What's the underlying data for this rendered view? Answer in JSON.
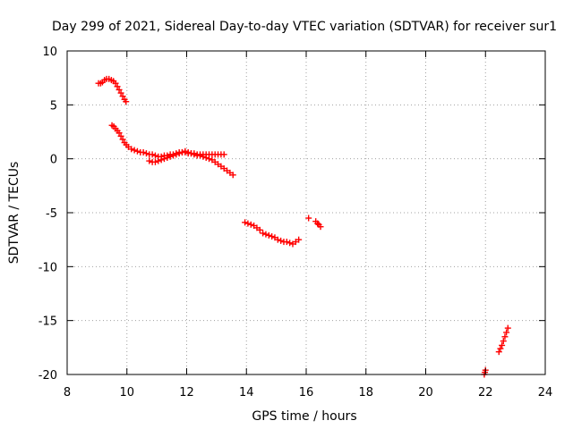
{
  "chart_data": {
    "type": "scatter",
    "title": "Day 299 of 2021, Sidereal Day-to-day VTEC variation (SDTVAR) for receiver sur1",
    "xlabel": "GPS time / hours",
    "ylabel": "SDTVAR / TECUs",
    "xlim": [
      8,
      24
    ],
    "ylim": [
      -20,
      10
    ],
    "xticks": [
      8,
      10,
      12,
      14,
      16,
      18,
      20,
      22,
      24
    ],
    "yticks": [
      -20,
      -15,
      -10,
      -5,
      0,
      5,
      10
    ],
    "grid": true,
    "marker": "+",
    "series": [
      {
        "name": "sur1",
        "color": "#ff0000",
        "points": [
          [
            9.05,
            7.0
          ],
          [
            9.12,
            7.0
          ],
          [
            9.18,
            7.1
          ],
          [
            9.25,
            7.3
          ],
          [
            9.32,
            7.4
          ],
          [
            9.4,
            7.4
          ],
          [
            9.48,
            7.3
          ],
          [
            9.55,
            7.2
          ],
          [
            9.62,
            7.0
          ],
          [
            9.68,
            6.7
          ],
          [
            9.74,
            6.4
          ],
          [
            9.8,
            6.1
          ],
          [
            9.86,
            5.8
          ],
          [
            9.92,
            5.5
          ],
          [
            9.97,
            5.3
          ],
          [
            9.5,
            3.1
          ],
          [
            9.56,
            3.0
          ],
          [
            9.62,
            2.8
          ],
          [
            9.68,
            2.6
          ],
          [
            9.74,
            2.4
          ],
          [
            9.8,
            2.1
          ],
          [
            9.86,
            1.8
          ],
          [
            9.92,
            1.5
          ],
          [
            9.98,
            1.3
          ],
          [
            10.05,
            1.1
          ],
          [
            10.15,
            0.9
          ],
          [
            10.25,
            0.8
          ],
          [
            10.35,
            0.7
          ],
          [
            10.45,
            0.6
          ],
          [
            10.55,
            0.6
          ],
          [
            10.65,
            0.5
          ],
          [
            10.75,
            0.4
          ],
          [
            10.85,
            0.4
          ],
          [
            10.95,
            0.3
          ],
          [
            11.05,
            0.2
          ],
          [
            11.15,
            0.2
          ],
          [
            11.25,
            0.3
          ],
          [
            11.35,
            0.3
          ],
          [
            11.45,
            0.4
          ],
          [
            11.55,
            0.4
          ],
          [
            11.65,
            0.5
          ],
          [
            11.75,
            0.6
          ],
          [
            11.85,
            0.6
          ],
          [
            11.95,
            0.6
          ],
          [
            12.05,
            0.5
          ],
          [
            12.15,
            0.5
          ],
          [
            12.25,
            0.5
          ],
          [
            12.35,
            0.4
          ],
          [
            12.45,
            0.4
          ],
          [
            12.55,
            0.4
          ],
          [
            12.65,
            0.4
          ],
          [
            12.75,
            0.4
          ],
          [
            12.85,
            0.4
          ],
          [
            12.95,
            0.4
          ],
          [
            13.05,
            0.4
          ],
          [
            13.15,
            0.4
          ],
          [
            13.25,
            0.4
          ],
          [
            10.75,
            -0.2
          ],
          [
            10.85,
            -0.3
          ],
          [
            10.95,
            -0.3
          ],
          [
            11.05,
            -0.2
          ],
          [
            11.15,
            -0.1
          ],
          [
            11.25,
            0.0
          ],
          [
            11.35,
            0.1
          ],
          [
            11.45,
            0.2
          ],
          [
            11.55,
            0.3
          ],
          [
            11.65,
            0.4
          ],
          [
            11.75,
            0.5
          ],
          [
            11.85,
            0.6
          ],
          [
            11.95,
            0.7
          ],
          [
            12.05,
            0.6
          ],
          [
            12.15,
            0.5
          ],
          [
            12.25,
            0.4
          ],
          [
            12.35,
            0.3
          ],
          [
            12.45,
            0.3
          ],
          [
            12.55,
            0.2
          ],
          [
            12.65,
            0.1
          ],
          [
            12.75,
            0.0
          ],
          [
            12.85,
            -0.1
          ],
          [
            12.95,
            -0.3
          ],
          [
            13.05,
            -0.5
          ],
          [
            13.15,
            -0.7
          ],
          [
            13.25,
            -0.9
          ],
          [
            13.35,
            -1.1
          ],
          [
            13.45,
            -1.3
          ],
          [
            13.55,
            -1.5
          ],
          [
            13.95,
            -5.9
          ],
          [
            14.05,
            -6.0
          ],
          [
            14.15,
            -6.1
          ],
          [
            14.25,
            -6.2
          ],
          [
            14.35,
            -6.4
          ],
          [
            14.45,
            -6.6
          ],
          [
            14.55,
            -6.9
          ],
          [
            14.65,
            -7.0
          ],
          [
            14.75,
            -7.1
          ],
          [
            14.85,
            -7.2
          ],
          [
            14.95,
            -7.3
          ],
          [
            15.05,
            -7.5
          ],
          [
            15.15,
            -7.6
          ],
          [
            15.25,
            -7.7
          ],
          [
            15.35,
            -7.7
          ],
          [
            15.45,
            -7.8
          ],
          [
            15.55,
            -7.9
          ],
          [
            15.65,
            -7.7
          ],
          [
            15.75,
            -7.5
          ],
          [
            16.08,
            -5.5
          ],
          [
            16.32,
            -5.8
          ],
          [
            16.38,
            -6.0
          ],
          [
            16.42,
            -6.1
          ],
          [
            16.48,
            -6.3
          ],
          [
            21.96,
            -20.0
          ],
          [
            21.98,
            -19.8
          ],
          [
            22.0,
            -19.6
          ],
          [
            22.45,
            -17.9
          ],
          [
            22.5,
            -17.6
          ],
          [
            22.55,
            -17.3
          ],
          [
            22.6,
            -16.9
          ],
          [
            22.65,
            -16.5
          ],
          [
            22.7,
            -16.1
          ],
          [
            22.75,
            -15.7
          ]
        ]
      }
    ]
  }
}
